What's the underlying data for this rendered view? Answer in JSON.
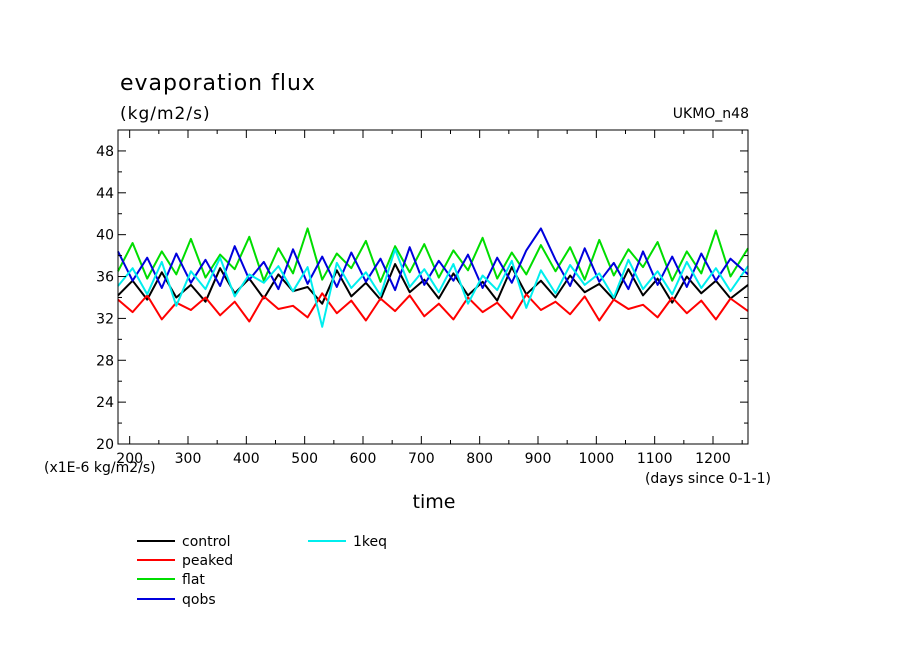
{
  "chart_data": {
    "type": "line",
    "title": "evaporation flux",
    "units_label": "(kg/m2/s)",
    "model_label": "UKMO_n48",
    "scale_note": "(x1E-6 kg/m2/s)",
    "xlabel": "time",
    "x_units_note": "(days since 0-1-1)",
    "xlim": [
      180,
      1260
    ],
    "ylim": [
      20,
      50
    ],
    "x_ticks": [
      200,
      300,
      400,
      500,
      600,
      700,
      800,
      900,
      1000,
      1100,
      1200
    ],
    "y_ticks": [
      20,
      24,
      28,
      32,
      36,
      40,
      44,
      48
    ],
    "x": [
      180,
      205,
      230,
      255,
      280,
      305,
      330,
      355,
      380,
      405,
      430,
      455,
      480,
      505,
      530,
      555,
      580,
      605,
      630,
      655,
      680,
      705,
      730,
      755,
      780,
      805,
      830,
      855,
      880,
      905,
      930,
      955,
      980,
      1005,
      1030,
      1055,
      1080,
      1105,
      1130,
      1155,
      1180,
      1205,
      1230,
      1260
    ],
    "series": [
      {
        "name": "control",
        "color": "#000000",
        "values": [
          34.2,
          35.6,
          33.8,
          36.4,
          34.0,
          35.2,
          33.6,
          36.8,
          34.4,
          35.8,
          33.9,
          36.2,
          34.6,
          35.0,
          33.4,
          36.6,
          34.1,
          35.4,
          33.8,
          37.2,
          34.5,
          35.7,
          33.9,
          36.3,
          34.2,
          35.5,
          33.7,
          36.9,
          34.3,
          35.6,
          34.0,
          36.1,
          34.5,
          35.3,
          33.8,
          36.7,
          34.2,
          35.8,
          33.5,
          36.0,
          34.4,
          35.6,
          33.9,
          35.2
        ]
      },
      {
        "name": "peaked",
        "color": "#ff0000",
        "values": [
          33.8,
          32.6,
          34.2,
          31.9,
          33.5,
          32.8,
          34.0,
          32.3,
          33.6,
          31.7,
          34.1,
          32.9,
          33.2,
          32.1,
          34.4,
          32.5,
          33.7,
          31.8,
          33.9,
          32.7,
          34.2,
          32.2,
          33.4,
          31.9,
          34.0,
          32.6,
          33.5,
          32.0,
          34.3,
          32.8,
          33.6,
          32.4,
          34.1,
          31.8,
          33.8,
          32.9,
          33.3,
          32.1,
          34.0,
          32.5,
          33.7,
          31.9,
          33.9,
          32.7
        ]
      },
      {
        "name": "flat",
        "color": "#00dd00",
        "values": [
          36.5,
          39.2,
          35.8,
          38.4,
          36.2,
          39.6,
          35.9,
          38.1,
          36.7,
          39.8,
          35.6,
          38.7,
          36.3,
          40.6,
          35.7,
          38.2,
          36.8,
          39.4,
          35.5,
          38.9,
          36.4,
          39.1,
          35.9,
          38.5,
          36.6,
          39.7,
          35.8,
          38.3,
          36.2,
          39.0,
          36.5,
          38.8,
          35.7,
          39.5,
          36.1,
          38.6,
          36.9,
          39.3,
          35.6,
          38.4,
          36.3,
          40.4,
          36.0,
          38.7
        ]
      },
      {
        "name": "qobs",
        "color": "#0000dd",
        "values": [
          38.4,
          35.6,
          37.8,
          34.9,
          38.2,
          35.4,
          37.6,
          35.1,
          38.9,
          35.7,
          37.4,
          34.8,
          38.6,
          35.3,
          37.9,
          35.0,
          38.3,
          35.5,
          37.7,
          34.7,
          38.8,
          35.2,
          37.5,
          35.6,
          38.1,
          34.9,
          37.8,
          35.4,
          38.5,
          40.6,
          37.6,
          35.1,
          38.7,
          35.5,
          37.3,
          34.8,
          38.4,
          35.2,
          37.9,
          35.0,
          38.2,
          35.6,
          37.7,
          36.2
        ]
      },
      {
        "name": "1keq",
        "color": "#00eeee",
        "values": [
          35.1,
          36.8,
          34.3,
          37.4,
          33.2,
          36.5,
          34.8,
          37.8,
          34.1,
          36.2,
          35.4,
          37.0,
          34.6,
          36.9,
          31.2,
          37.3,
          34.9,
          36.4,
          34.2,
          38.6,
          35.0,
          36.7,
          34.5,
          37.2,
          33.4,
          36.1,
          34.7,
          37.5,
          33.0,
          36.6,
          34.4,
          37.1,
          35.2,
          36.3,
          34.0,
          37.6,
          34.8,
          36.5,
          34.3,
          37.4,
          34.9,
          36.8,
          34.6,
          37.0
        ]
      }
    ]
  }
}
